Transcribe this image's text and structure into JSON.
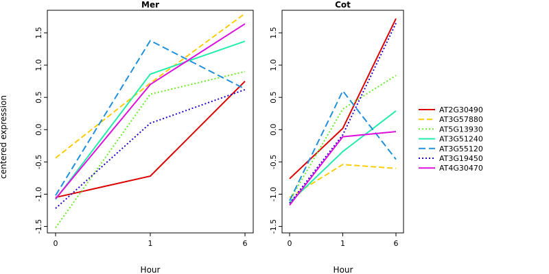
{
  "chart_data": {
    "type": "line",
    "ylabel": "centered expression",
    "xlabel": "Hour",
    "legend_placement": "right",
    "grid": false,
    "series_styles": [
      {
        "name": "AT2G30490",
        "color": "#dd0000",
        "dash": "solid"
      },
      {
        "name": "AT3G57880",
        "color": "#ffcc00",
        "dash": "dashed"
      },
      {
        "name": "AT5G13930",
        "color": "#66ee22",
        "dash": "dotted"
      },
      {
        "name": "AT3G51240",
        "color": "#22eeaa",
        "dash": "solid"
      },
      {
        "name": "AT3G55120",
        "color": "#1e90dd",
        "dash": "longdash"
      },
      {
        "name": "AT3G19450",
        "color": "#2200cc",
        "dash": "dotted"
      },
      {
        "name": "AT4G30470",
        "color": "#dd11dd",
        "dash": "solid"
      }
    ],
    "panels": [
      {
        "title": "Mer",
        "categories": [
          "0",
          "1",
          "6"
        ],
        "ylim": [
          -1.6,
          1.85
        ],
        "yticks": [
          "-1.5",
          "-1.0",
          "-0.5",
          "0.0",
          "0.5",
          "1.0",
          "1.5"
        ],
        "series": [
          {
            "name": "AT2G30490",
            "values": [
              -1.05,
              -0.72,
              0.75
            ]
          },
          {
            "name": "AT3G57880",
            "values": [
              -0.44,
              0.72,
              1.8
            ]
          },
          {
            "name": "AT5G13930",
            "values": [
              -1.52,
              0.55,
              0.9
            ]
          },
          {
            "name": "AT3G51240",
            "values": [
              -1.08,
              0.86,
              1.37
            ]
          },
          {
            "name": "AT3G55120",
            "values": [
              -1.02,
              1.38,
              0.63
            ]
          },
          {
            "name": "AT3G19450",
            "values": [
              -1.22,
              0.1,
              0.62
            ]
          },
          {
            "name": "AT4G30470",
            "values": [
              -1.07,
              0.7,
              1.64
            ]
          }
        ]
      },
      {
        "title": "Cot",
        "categories": [
          "0",
          "1",
          "6"
        ],
        "ylim": [
          -1.6,
          1.85
        ],
        "yticks": [
          "-1.5",
          "-1.0",
          "-0.5",
          "0.0",
          "0.5",
          "1.0",
          "1.5"
        ],
        "series": [
          {
            "name": "AT2G30490",
            "values": [
              -0.76,
              0.02,
              1.72
            ]
          },
          {
            "name": "AT3G57880",
            "values": [
              -1.05,
              -0.54,
              -0.6
            ]
          },
          {
            "name": "AT5G13930",
            "values": [
              -1.1,
              0.32,
              0.84
            ]
          },
          {
            "name": "AT3G51240",
            "values": [
              -1.13,
              -0.34,
              0.29
            ]
          },
          {
            "name": "AT3G55120",
            "values": [
              -1.1,
              0.6,
              -0.46
            ]
          },
          {
            "name": "AT3G19450",
            "values": [
              -1.14,
              -0.08,
              1.65
            ]
          },
          {
            "name": "AT4G30470",
            "values": [
              -1.17,
              -0.11,
              -0.03
            ]
          }
        ]
      }
    ]
  }
}
